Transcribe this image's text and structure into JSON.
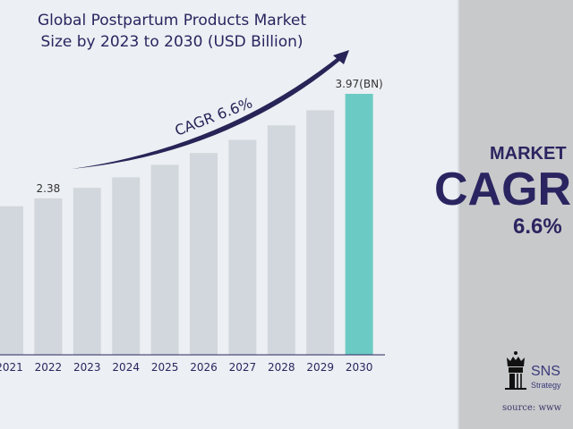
{
  "chart_data": {
    "type": "bar",
    "title": "Global Postpartum Products Market Size by 2023 to 2030 (USD Billion)",
    "title_lines": [
      "Global Postpartum Products Market",
      "Size by 2023 to 2030 (USD Billion)"
    ],
    "categories": [
      "2021",
      "2022",
      "2023",
      "2024",
      "2025",
      "2026",
      "2027",
      "2028",
      "2029",
      "2030"
    ],
    "values": [
      2.26,
      2.38,
      2.54,
      2.7,
      2.89,
      3.07,
      3.27,
      3.49,
      3.72,
      3.97
    ],
    "data_labels": {
      "2022": "2.38",
      "2030": "3.97(BN)"
    },
    "annotation": "CAGR  6.6%",
    "ylim": [
      0,
      4.3
    ],
    "grid": false,
    "colors": {
      "bar": "#d1d7dc",
      "highlight": "#6ccac4",
      "arrow": "#272457",
      "text": "#2a2560"
    }
  },
  "side_panel": {
    "market_label": "MARKET",
    "cagr_label": "CAGR",
    "cagr_value": "6.6%",
    "brand": "SNS",
    "brand_sub": "Strategy",
    "source": "source: www"
  }
}
